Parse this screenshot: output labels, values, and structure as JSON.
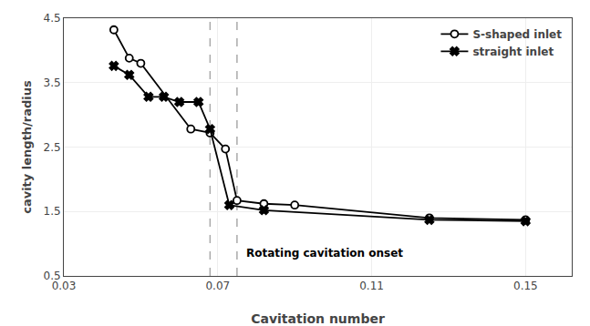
{
  "chart_data": {
    "type": "line",
    "xlabel": "Cavitation number",
    "ylabel": "cavity length/radius",
    "series": [
      {
        "name": "S-shaped inlet",
        "color": "black",
        "marker": "circle-open",
        "line_style": "solid",
        "x": [
          0.043,
          0.047,
          0.05,
          0.063,
          0.068,
          0.072,
          0.075,
          0.082,
          0.09,
          0.125,
          0.15
        ],
        "values": [
          4.32,
          3.88,
          3.8,
          2.78,
          2.72,
          2.47,
          1.67,
          1.62,
          1.6,
          1.4,
          1.37
        ]
      },
      {
        "name": "straight inlet",
        "color": "black",
        "marker": "x",
        "line_style": "solid",
        "x": [
          0.043,
          0.047,
          0.052,
          0.056,
          0.06,
          0.065,
          0.068,
          0.073,
          0.082,
          0.125,
          0.15
        ],
        "values": [
          3.76,
          3.62,
          3.28,
          3.28,
          3.2,
          3.2,
          2.78,
          1.6,
          1.52,
          1.37,
          1.35
        ]
      }
    ],
    "vlines": [
      {
        "x": 0.068,
        "color": "#aaaaaa",
        "line_style": "dashed"
      },
      {
        "x": 0.075,
        "color": "#aaaaaa",
        "line_style": "dashed"
      }
    ],
    "annotations": [
      {
        "text": "Rotating cavitation onset",
        "x": 0.077,
        "y": 0.73
      }
    ],
    "xlim": [
      0.03,
      0.162
    ],
    "ylim": [
      0.5,
      4.5
    ],
    "xticks": [
      0.03,
      0.07,
      0.11,
      0.15
    ],
    "yticks": [
      0.5,
      1.5,
      2.5,
      3.5,
      4.5
    ],
    "grid": true,
    "legend": "upper right"
  }
}
